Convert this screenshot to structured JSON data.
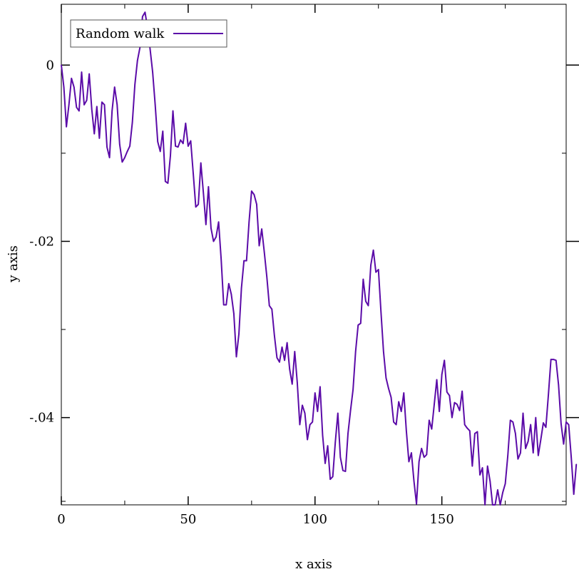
{
  "chart_data": {
    "type": "line",
    "title": "",
    "xlabel": "x axis",
    "ylabel": "y axis",
    "xlim": [
      0,
      199
    ],
    "ylim": [
      -0.0499,
      0.0069
    ],
    "x_ticks": [
      {
        "value": 0,
        "label": "0"
      },
      {
        "value": 50,
        "label": "50"
      },
      {
        "value": 100,
        "label": "100"
      },
      {
        "value": 150,
        "label": "150"
      }
    ],
    "y_ticks": [
      {
        "value": 0,
        "label": "0"
      },
      {
        "value": -0.02,
        "label": "-.02"
      },
      {
        "value": -0.04,
        "label": "-.04"
      }
    ],
    "x_minor_step": 25,
    "y_minor_step": 0.01,
    "grid": false,
    "legend_position": "top-left",
    "series": [
      {
        "name": "Random walk",
        "color": "#5b0ba8",
        "x_start": 0,
        "x_step": 1,
        "values": [
          0,
          -0.0025,
          -0.007,
          -0.0045,
          -0.0015,
          -0.0025,
          -0.0048,
          -0.0052,
          -0.0008,
          -0.0045,
          -0.004,
          -0.001,
          -0.005,
          -0.0078,
          -0.0047,
          -0.0083,
          -0.0042,
          -0.0045,
          -0.0093,
          -0.0105,
          -0.0052,
          -0.0025,
          -0.0045,
          -0.009,
          -0.011,
          -0.0105,
          -0.0098,
          -0.0092,
          -0.0065,
          -0.0022,
          0.0005,
          0.002,
          0.0055,
          0.006,
          0.0042,
          0.0018,
          -0.0008,
          -0.0045,
          -0.0087,
          -0.0098,
          -0.0075,
          -0.0132,
          -0.0134,
          -0.0103,
          -0.0052,
          -0.0092,
          -0.0093,
          -0.0085,
          -0.0089,
          -0.0066,
          -0.0092,
          -0.0086,
          -0.0123,
          -0.0161,
          -0.0158,
          -0.0111,
          -0.0145,
          -0.0181,
          -0.0138,
          -0.0185,
          -0.02,
          -0.0195,
          -0.0178,
          -0.022,
          -0.0272,
          -0.0272,
          -0.0248,
          -0.026,
          -0.0282,
          -0.0331,
          -0.0305,
          -0.0253,
          -0.0222,
          -0.0222,
          -0.0178,
          -0.0143,
          -0.0147,
          -0.0158,
          -0.0205,
          -0.0186,
          -0.0212,
          -0.024,
          -0.0273,
          -0.0277,
          -0.0307,
          -0.0332,
          -0.0337,
          -0.032,
          -0.0335,
          -0.0315,
          -0.0345,
          -0.0362,
          -0.0325,
          -0.036,
          -0.0408,
          -0.0386,
          -0.0395,
          -0.0425,
          -0.0408,
          -0.0405,
          -0.0372,
          -0.0393,
          -0.0365,
          -0.042,
          -0.0452,
          -0.0432,
          -0.047,
          -0.0467,
          -0.0428,
          -0.0395,
          -0.0445,
          -0.046,
          -0.0461,
          -0.0418,
          -0.0392,
          -0.0368,
          -0.0325,
          -0.0295,
          -0.0293,
          -0.0243,
          -0.0268,
          -0.0273,
          -0.0227,
          -0.021,
          -0.0235,
          -0.0232,
          -0.028,
          -0.0325,
          -0.0355,
          -0.0367,
          -0.0377,
          -0.0405,
          -0.0408,
          -0.0382,
          -0.0393,
          -0.0372,
          -0.0415,
          -0.045,
          -0.044,
          -0.0472,
          -0.0498,
          -0.045,
          -0.0435,
          -0.0445,
          -0.0442,
          -0.0403,
          -0.0413,
          -0.0385,
          -0.0357,
          -0.0393,
          -0.0351,
          -0.0335,
          -0.0371,
          -0.0375,
          -0.04,
          -0.0383,
          -0.0385,
          -0.0392,
          -0.037,
          -0.0408,
          -0.0412,
          -0.0415,
          -0.0455,
          -0.0418,
          -0.0416,
          -0.0465,
          -0.0457,
          -0.0499,
          -0.0455,
          -0.0472,
          -0.0502,
          -0.0505,
          -0.0482,
          -0.0515,
          -0.0485,
          -0.0475,
          -0.0443,
          -0.0403,
          -0.0405,
          -0.0418,
          -0.0447,
          -0.044,
          -0.0395,
          -0.0435,
          -0.0427,
          -0.0408,
          -0.044,
          -0.04,
          -0.0443,
          -0.0425,
          -0.0406,
          -0.0411,
          -0.0374,
          -0.0334,
          -0.0334,
          -0.0335,
          -0.0363,
          -0.0407,
          -0.043,
          -0.0405,
          -0.0408,
          -0.0445,
          -0.0487,
          -0.0453
        ]
      }
    ]
  }
}
